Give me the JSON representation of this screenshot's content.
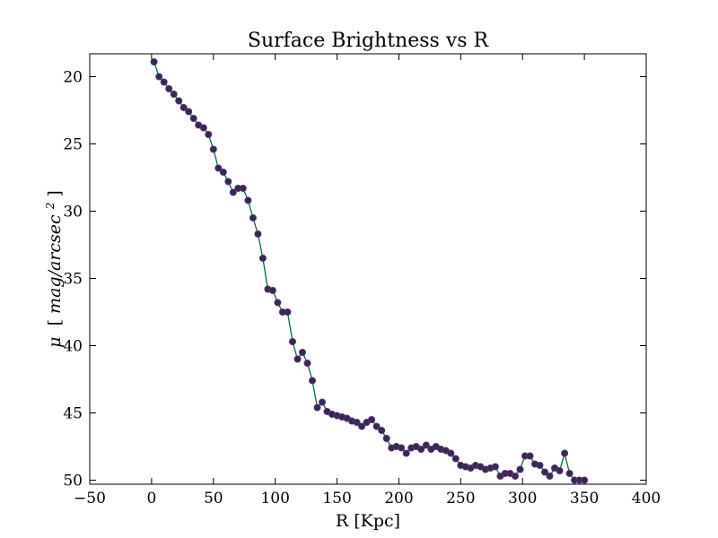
{
  "chart_data": {
    "type": "line",
    "title": "Surface Brightness vs R",
    "xlabel": "R [Kpc]",
    "ylabel_parts": {
      "mu": "μ",
      "lbr": "[",
      "unit": "mag/arcsec",
      "exp": "2",
      "rbr": "]"
    },
    "xlim": [
      -50,
      400
    ],
    "ylim": [
      50.3,
      18.3
    ],
    "y_inverted": true,
    "xticks": [
      -50,
      0,
      50,
      100,
      150,
      200,
      250,
      300,
      350,
      400
    ],
    "xtick_labels": [
      "−50",
      "0",
      "50",
      "100",
      "150",
      "200",
      "250",
      "300",
      "350",
      "400"
    ],
    "yticks": [
      20,
      25,
      30,
      35,
      40,
      45,
      50
    ],
    "ytick_labels": [
      "20",
      "25",
      "30",
      "35",
      "40",
      "45",
      "50"
    ],
    "grid": false,
    "line_color": "#006b4a",
    "marker_fill": "#2b2f4f",
    "marker_edge": "#7a2a7a",
    "series": [
      {
        "x": [
          2,
          6,
          10,
          14,
          18,
          22,
          26,
          30,
          34,
          38,
          42,
          46,
          50,
          54,
          58,
          62,
          66,
          70,
          74,
          78,
          82,
          86,
          90,
          94,
          98,
          102,
          106,
          110,
          114,
          118,
          122,
          126,
          130,
          134,
          138,
          142,
          146,
          150,
          154,
          158,
          162,
          166,
          170,
          174,
          178,
          182,
          186,
          190,
          194,
          198,
          202,
          206,
          210,
          214,
          218,
          222,
          226,
          230,
          234,
          238,
          242,
          246,
          250,
          254,
          258,
          262,
          266,
          270,
          274,
          278,
          282,
          286,
          290,
          294,
          298,
          302,
          306,
          310,
          314,
          318,
          322,
          326,
          330,
          334,
          338,
          342,
          346,
          350
        ],
        "y": [
          18.9,
          20.0,
          20.4,
          20.9,
          21.3,
          21.8,
          22.3,
          22.6,
          23.1,
          23.6,
          23.8,
          24.3,
          25.4,
          26.8,
          27.1,
          27.8,
          28.6,
          28.3,
          28.3,
          29.2,
          30.5,
          31.7,
          33.5,
          35.8,
          35.9,
          36.8,
          37.5,
          37.5,
          39.7,
          41.0,
          40.5,
          41.3,
          42.6,
          44.6,
          44.2,
          44.9,
          45.1,
          45.2,
          45.3,
          45.4,
          45.6,
          45.7,
          46.0,
          45.7,
          45.5,
          46.0,
          46.3,
          46.9,
          47.6,
          47.5,
          47.6,
          48.0,
          47.6,
          47.5,
          47.7,
          47.4,
          47.7,
          47.5,
          47.7,
          47.8,
          48.0,
          48.4,
          48.9,
          49.0,
          49.1,
          48.9,
          49.0,
          49.2,
          49.1,
          49.0,
          49.7,
          49.5,
          49.5,
          49.7,
          49.2,
          48.2,
          48.2,
          48.8,
          48.9,
          49.4,
          49.7,
          49.1,
          49.3,
          48.0,
          49.5,
          50.0,
          50.0,
          50.0
        ]
      }
    ]
  }
}
